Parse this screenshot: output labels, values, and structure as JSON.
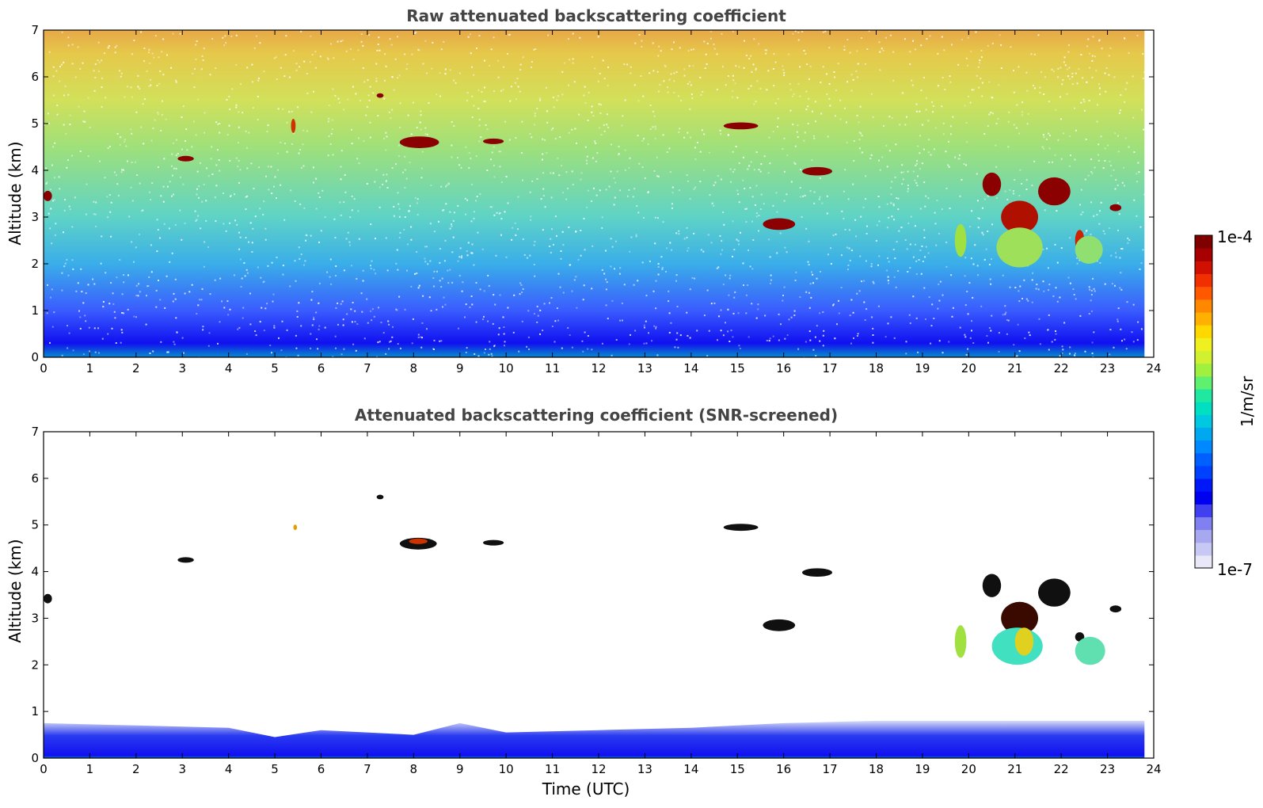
{
  "chart_data": [
    {
      "type": "heatmap",
      "title": "Raw attenuated backscattering coefficient",
      "xlabel": "",
      "ylabel": "Altitude (km)",
      "xlim": [
        0,
        24
      ],
      "ylim": [
        0,
        7
      ],
      "x_ticks": [
        "0",
        "1",
        "2",
        "3",
        "4",
        "5",
        "6",
        "7",
        "8",
        "9",
        "10",
        "11",
        "12",
        "13",
        "14",
        "15",
        "16",
        "17",
        "18",
        "19",
        "20",
        "21",
        "22",
        "23",
        "24"
      ],
      "y_ticks": [
        "0",
        "1",
        "2",
        "3",
        "4",
        "5",
        "6",
        "7"
      ],
      "data_end_time": 23.8,
      "background_profile": [
        {
          "altitude": 0.05,
          "color": "#0a7ad0"
        },
        {
          "altitude": 0.3,
          "color": "#1010f0"
        },
        {
          "altitude": 1.0,
          "color": "#3a5cff"
        },
        {
          "altitude": 2.0,
          "color": "#3aaee8"
        },
        {
          "altitude": 3.0,
          "color": "#5fd3c6"
        },
        {
          "altitude": 4.5,
          "color": "#9fe07a"
        },
        {
          "altitude": 5.5,
          "color": "#d2e05a"
        },
        {
          "altitude": 6.5,
          "color": "#e6c84a"
        },
        {
          "altitude": 7.0,
          "color": "#e7a848"
        }
      ],
      "clouds": [
        {
          "t0": 0.0,
          "t1": 0.18,
          "z": 3.45,
          "dz": 0.22,
          "color": "#8b0000"
        },
        {
          "t0": 2.9,
          "t1": 3.25,
          "z": 4.25,
          "dz": 0.12,
          "color": "#8b0000"
        },
        {
          "t0": 5.35,
          "t1": 5.45,
          "z": 4.95,
          "dz": 0.3,
          "color": "#cc3300"
        },
        {
          "t0": 7.2,
          "t1": 7.35,
          "z": 5.6,
          "dz": 0.1,
          "color": "#8b0000"
        },
        {
          "t0": 7.7,
          "t1": 8.55,
          "z": 4.6,
          "dz": 0.25,
          "color": "#8b0000"
        },
        {
          "t0": 9.5,
          "t1": 9.95,
          "z": 4.62,
          "dz": 0.12,
          "color": "#8b0000"
        },
        {
          "t0": 14.7,
          "t1": 15.45,
          "z": 4.95,
          "dz": 0.15,
          "color": "#8b0000"
        },
        {
          "t0": 15.55,
          "t1": 16.25,
          "z": 2.85,
          "dz": 0.25,
          "color": "#8b0000"
        },
        {
          "t0": 16.4,
          "t1": 17.05,
          "z": 3.98,
          "dz": 0.18,
          "color": "#8b0000"
        },
        {
          "t0": 20.3,
          "t1": 20.7,
          "z": 3.7,
          "dz": 0.5,
          "color": "#8b0000"
        },
        {
          "t0": 20.7,
          "t1": 21.5,
          "z": 3.0,
          "dz": 0.7,
          "color": "#b01000"
        },
        {
          "t0": 21.5,
          "t1": 22.2,
          "z": 3.55,
          "dz": 0.6,
          "color": "#8b0000"
        },
        {
          "t0": 22.3,
          "t1": 22.5,
          "z": 2.5,
          "dz": 0.45,
          "color": "#cc2200"
        },
        {
          "t0": 23.05,
          "t1": 23.3,
          "z": 3.2,
          "dz": 0.15,
          "color": "#8b0000"
        },
        {
          "t0": 19.7,
          "t1": 19.95,
          "z": 2.5,
          "dz": 0.7,
          "color": "#a0e040"
        },
        {
          "t0": 20.6,
          "t1": 21.6,
          "z": 2.35,
          "dz": 0.85,
          "color": "#9ee05a"
        },
        {
          "t0": 22.3,
          "t1": 22.9,
          "z": 2.3,
          "dz": 0.6,
          "color": "#8fe070"
        }
      ]
    },
    {
      "type": "heatmap",
      "title": "Attenuated backscattering coefficient (SNR-screened)",
      "xlabel": "Time (UTC)",
      "ylabel": "Altitude (km)",
      "xlim": [
        0,
        24
      ],
      "ylim": [
        0,
        7
      ],
      "x_ticks": [
        "0",
        "1",
        "2",
        "3",
        "4",
        "5",
        "6",
        "7",
        "8",
        "9",
        "10",
        "11",
        "12",
        "13",
        "14",
        "15",
        "16",
        "17",
        "18",
        "19",
        "20",
        "21",
        "22",
        "23",
        "24"
      ],
      "y_ticks": [
        "0",
        "1",
        "2",
        "3",
        "4",
        "5",
        "6",
        "7"
      ],
      "data_end_time": 23.8,
      "boundary_layer": [
        {
          "time": 0,
          "top": 0.75
        },
        {
          "time": 2,
          "top": 0.7
        },
        {
          "time": 4,
          "top": 0.65
        },
        {
          "time": 5,
          "top": 0.45
        },
        {
          "time": 6,
          "top": 0.6
        },
        {
          "time": 8,
          "top": 0.5
        },
        {
          "time": 9,
          "top": 0.75
        },
        {
          "time": 10,
          "top": 0.55
        },
        {
          "time": 12,
          "top": 0.6
        },
        {
          "time": 14,
          "top": 0.65
        },
        {
          "time": 16,
          "top": 0.75
        },
        {
          "time": 18,
          "top": 0.8
        },
        {
          "time": 20,
          "top": 0.8
        },
        {
          "time": 22,
          "top": 0.8
        },
        {
          "time": 23.8,
          "top": 0.8
        }
      ],
      "clouds": [
        {
          "t0": 0.0,
          "t1": 0.18,
          "z": 3.42,
          "dz": 0.2,
          "color": "#101010"
        },
        {
          "t0": 2.9,
          "t1": 3.25,
          "z": 4.25,
          "dz": 0.12,
          "color": "#101010"
        },
        {
          "t0": 5.4,
          "t1": 5.48,
          "z": 4.95,
          "dz": 0.12,
          "color": "#e0a000"
        },
        {
          "t0": 7.2,
          "t1": 7.35,
          "z": 5.6,
          "dz": 0.1,
          "color": "#101010"
        },
        {
          "t0": 7.7,
          "t1": 8.5,
          "z": 4.6,
          "dz": 0.25,
          "color": "#101010"
        },
        {
          "t0": 7.9,
          "t1": 8.3,
          "z": 4.65,
          "dz": 0.12,
          "color": "#cc3300"
        },
        {
          "t0": 9.5,
          "t1": 9.95,
          "z": 4.62,
          "dz": 0.12,
          "color": "#101010"
        },
        {
          "t0": 14.7,
          "t1": 15.45,
          "z": 4.95,
          "dz": 0.15,
          "color": "#101010"
        },
        {
          "t0": 15.55,
          "t1": 16.25,
          "z": 2.85,
          "dz": 0.25,
          "color": "#101010"
        },
        {
          "t0": 16.4,
          "t1": 17.05,
          "z": 3.98,
          "dz": 0.18,
          "color": "#101010"
        },
        {
          "t0": 20.3,
          "t1": 20.7,
          "z": 3.7,
          "dz": 0.5,
          "color": "#101010"
        },
        {
          "t0": 20.7,
          "t1": 21.5,
          "z": 3.0,
          "dz": 0.7,
          "color": "#3a0a00"
        },
        {
          "t0": 21.5,
          "t1": 22.2,
          "z": 3.55,
          "dz": 0.6,
          "color": "#101010"
        },
        {
          "t0": 22.3,
          "t1": 22.5,
          "z": 2.6,
          "dz": 0.2,
          "color": "#101010"
        },
        {
          "t0": 23.05,
          "t1": 23.3,
          "z": 3.2,
          "dz": 0.15,
          "color": "#101010"
        },
        {
          "t0": 19.7,
          "t1": 19.95,
          "z": 2.5,
          "dz": 0.7,
          "color": "#a0e040"
        },
        {
          "t0": 20.5,
          "t1": 21.6,
          "z": 2.4,
          "dz": 0.8,
          "color": "#40e0c0"
        },
        {
          "t0": 21.0,
          "t1": 21.4,
          "z": 2.5,
          "dz": 0.6,
          "color": "#e0d020"
        },
        {
          "t0": 22.3,
          "t1": 22.95,
          "z": 2.3,
          "dz": 0.6,
          "color": "#60e0b0"
        }
      ]
    }
  ],
  "colorbar": {
    "label": "1/m/sr",
    "max_label": "1e-4",
    "min_label": "1e-7",
    "colors": [
      "#e8e8f8",
      "#c8c8f4",
      "#a8a8f0",
      "#8080f0",
      "#4040f0",
      "#0000f0",
      "#0018f8",
      "#0040ff",
      "#0060ff",
      "#0088ff",
      "#00a8f0",
      "#00c8e0",
      "#00e0c0",
      "#20e8a0",
      "#60f070",
      "#a0f040",
      "#d0f030",
      "#f0f020",
      "#ffd800",
      "#ffb000",
      "#ff8800",
      "#ff5800",
      "#f03000",
      "#d01000",
      "#a80000",
      "#800000"
    ]
  }
}
